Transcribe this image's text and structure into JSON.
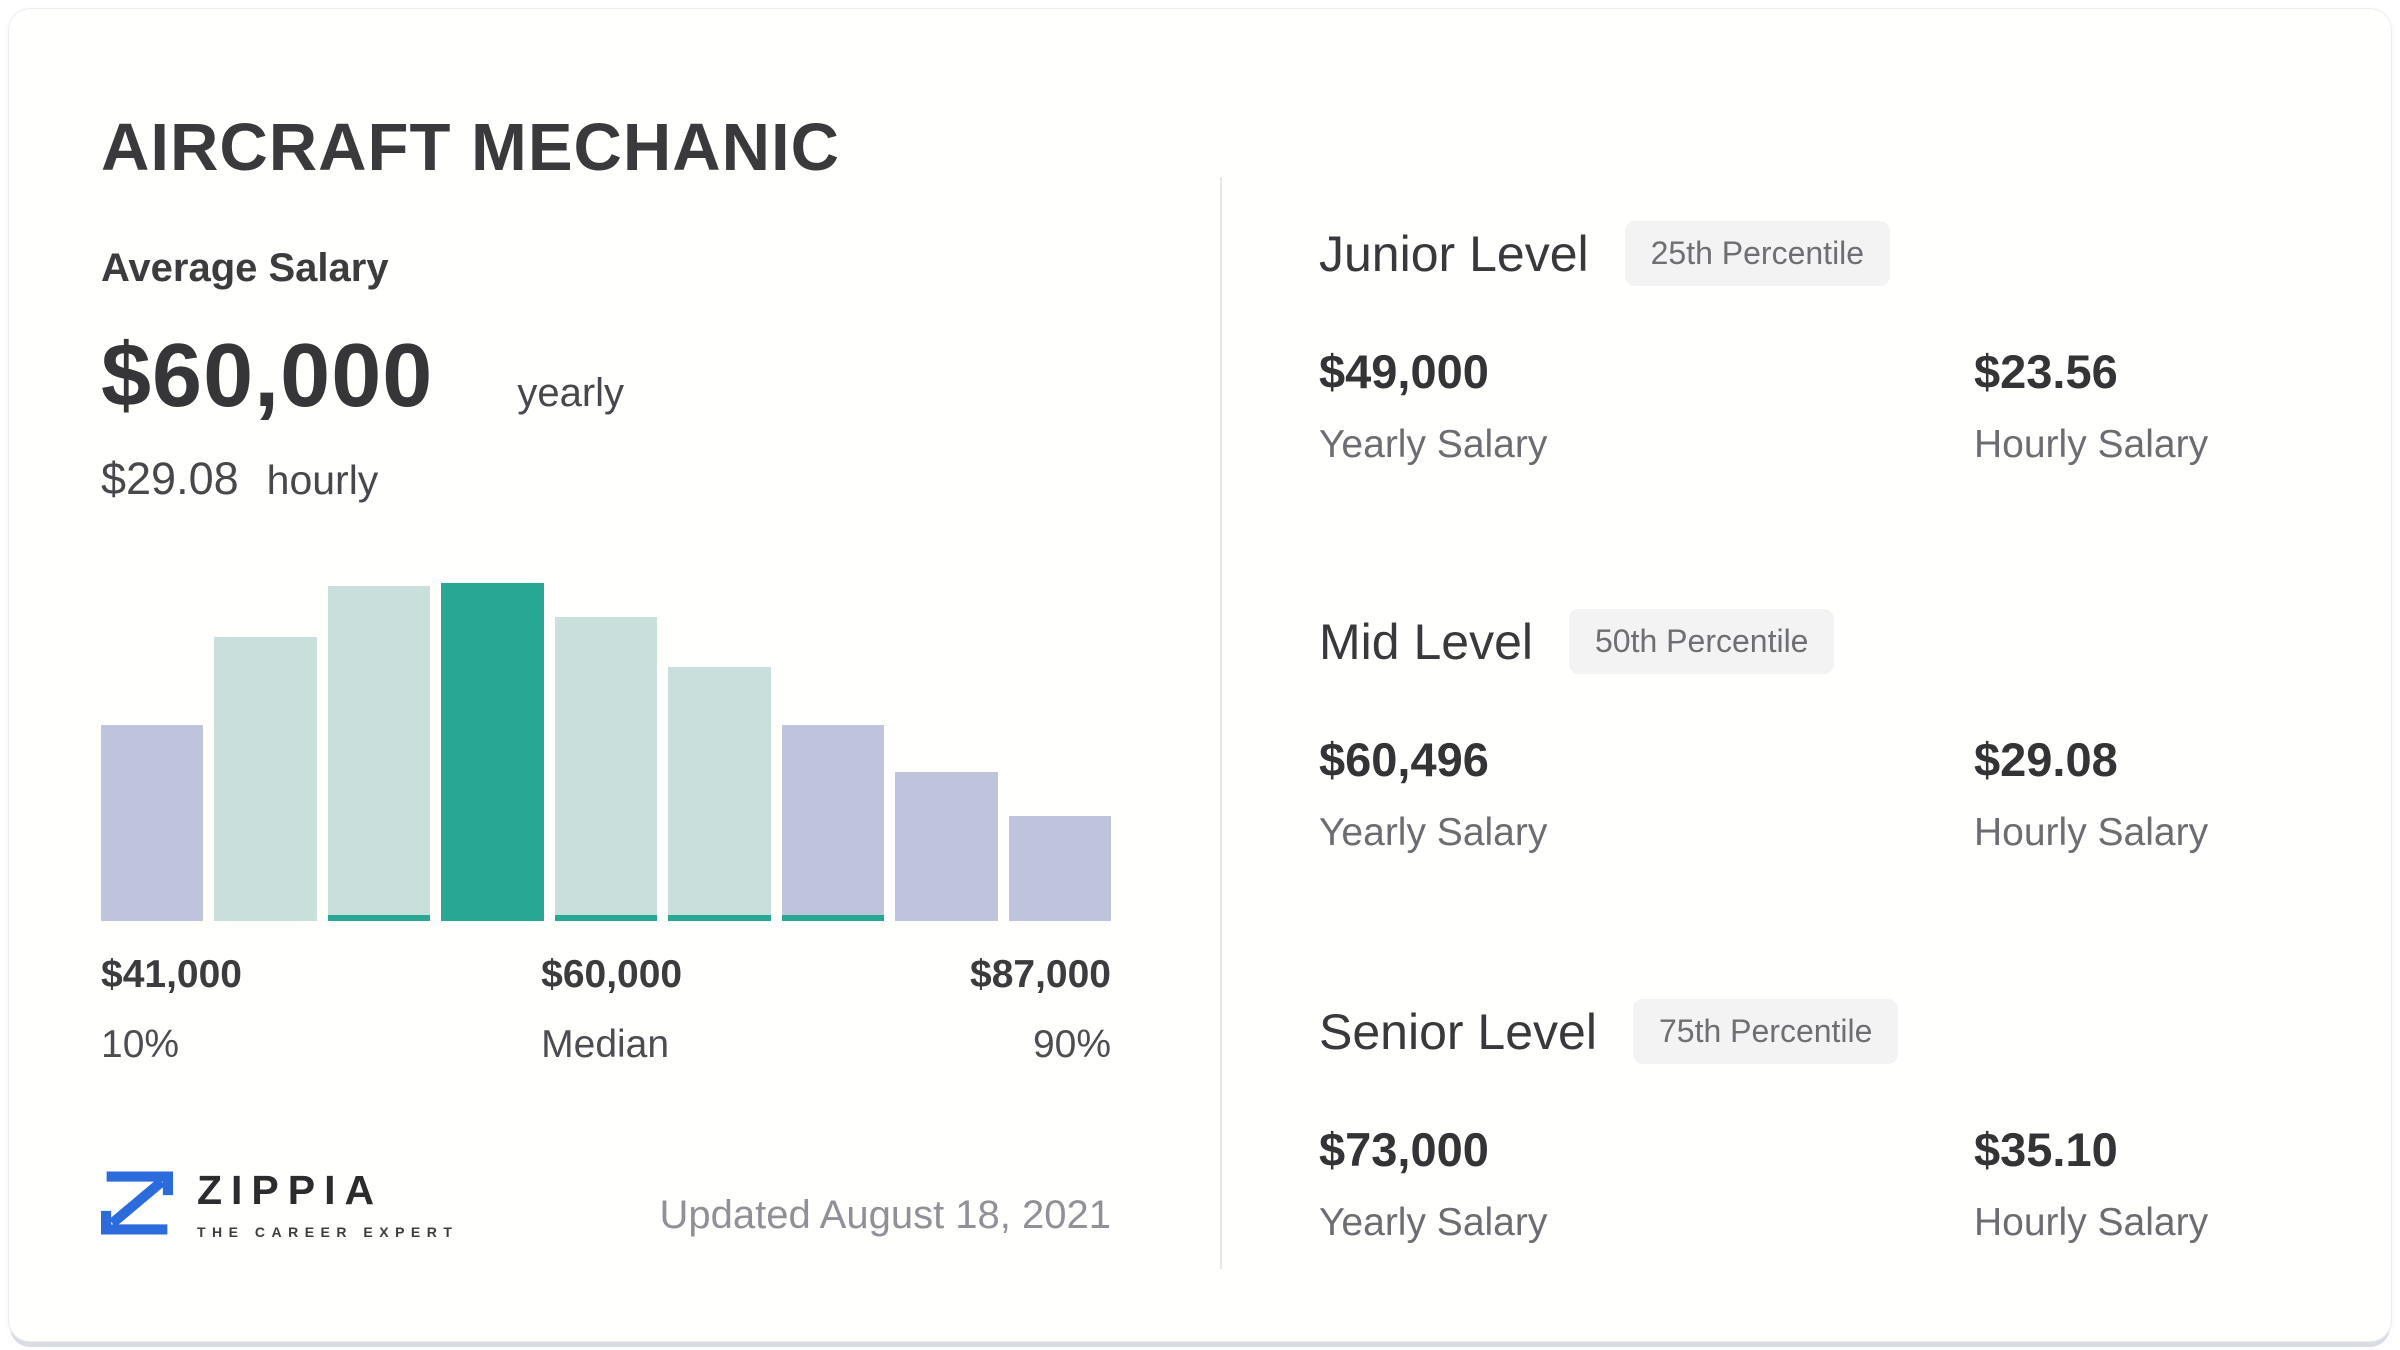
{
  "page_title": "AIRCRAFT MECHANIC",
  "average_salary": {
    "section_label": "Average Salary",
    "yearly_value": "$60,000",
    "yearly_unit": "yearly",
    "hourly_value": "$29.08",
    "hourly_unit": "hourly"
  },
  "chart_data": {
    "type": "bar",
    "title": "Aircraft Mechanic salary distribution histogram",
    "x_range": [
      "$41,000 (10th percentile)",
      "$87,000 (90th percentile)"
    ],
    "bars": [
      {
        "height_pct": 58,
        "style": "outside"
      },
      {
        "height_pct": 84,
        "style": "range"
      },
      {
        "height_pct": 99,
        "style": "range-underline"
      },
      {
        "height_pct": 100,
        "style": "median"
      },
      {
        "height_pct": 90,
        "style": "range-underline"
      },
      {
        "height_pct": 75,
        "style": "range-underline"
      },
      {
        "height_pct": 58,
        "style": "outside-underline"
      },
      {
        "height_pct": 44,
        "style": "outside"
      },
      {
        "height_pct": 31,
        "style": "outside"
      }
    ],
    "markers": [
      {
        "value": "$41,000",
        "label": "10%"
      },
      {
        "value": "$60,000",
        "label": "Median"
      },
      {
        "value": "$87,000",
        "label": "90%"
      }
    ],
    "legend_position": "none",
    "grid": false,
    "colors": {
      "median": "#29a795",
      "range": "#c8dfdb",
      "outside": "#bfc4dd"
    }
  },
  "levels": [
    {
      "title": "Junior Level",
      "badge": "25th Percentile",
      "yearly_value": "$49,000",
      "yearly_label": "Yearly Salary",
      "hourly_value": "$23.56",
      "hourly_label": "Hourly Salary"
    },
    {
      "title": "Mid Level",
      "badge": "50th Percentile",
      "yearly_value": "$60,496",
      "yearly_label": "Yearly Salary",
      "hourly_value": "$29.08",
      "hourly_label": "Hourly Salary"
    },
    {
      "title": "Senior Level",
      "badge": "75th Percentile",
      "yearly_value": "$73,000",
      "yearly_label": "Yearly Salary",
      "hourly_value": "$35.10",
      "hourly_label": "Hourly Salary"
    }
  ],
  "footer": {
    "brand_name": "ZIPPIA",
    "brand_tagline": "THE CAREER EXPERT",
    "updated_text": "Updated August 18, 2021"
  },
  "colors": {
    "brand_blue": "#2b6bdb"
  }
}
